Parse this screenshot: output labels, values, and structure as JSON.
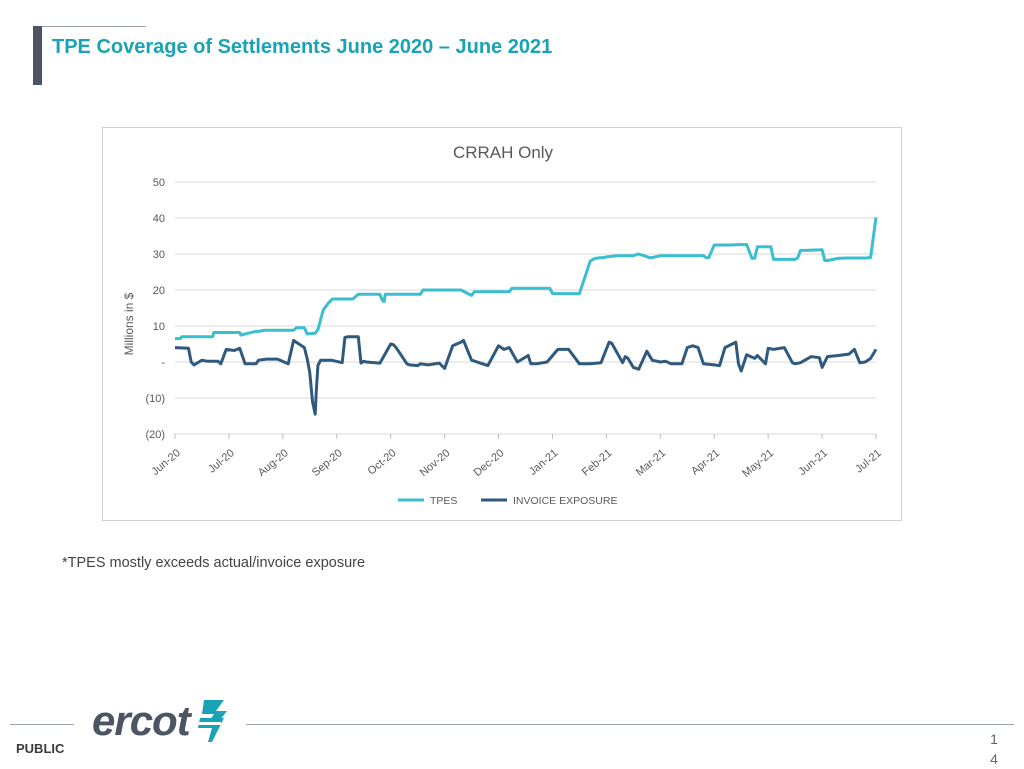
{
  "slide": {
    "title": "TPE Coverage of Settlements June 2020 – June 2021",
    "note": "*TPES mostly exceeds actual/invoice exposure",
    "footer_label": "PUBLIC",
    "page_number_line1": "1",
    "page_number_line2": "4",
    "logo_text": "ercot",
    "logo_mark": "ercot-bolt-icon"
  },
  "chart_data": {
    "type": "line",
    "title": "CRRAH Only",
    "xlabel": "",
    "ylabel": "Millions in $",
    "ylim": [
      -20,
      50
    ],
    "yticks": [
      50,
      40,
      30,
      20,
      10,
      0,
      -10,
      -20
    ],
    "ytick_labels": [
      "50",
      "40",
      "30",
      "20",
      "10",
      "-",
      "(10)",
      "(20)"
    ],
    "xtick_labels": [
      "Jun-20",
      "Jul-20",
      "Aug-20",
      "Sep-20",
      "Oct-20",
      "Nov-20",
      "Dec-20",
      "Jan-21",
      "Feb-21",
      "Mar-21",
      "Apr-21",
      "May-21",
      "Jun-21",
      "Jul-21"
    ],
    "grid": true,
    "legend_position": "bottom",
    "series": [
      {
        "name": "TPES",
        "color": "#3bbfcf",
        "x": [
          0,
          0.1,
          0.12,
          0.4,
          0.5,
          0.52,
          0.62,
          0.65,
          0.7,
          0.72,
          1.0,
          1.2,
          1.22,
          1.5,
          1.55,
          1.65,
          1.72,
          1.8,
          1.9,
          1.93,
          2.0,
          2.02,
          2.2,
          2.25,
          2.3,
          2.35,
          2.4,
          2.45,
          2.6,
          2.65,
          2.75,
          2.85,
          2.92,
          2.95,
          3.0,
          3.3,
          3.4,
          3.45,
          3.48,
          3.5,
          3.8,
          3.85,
          3.88,
          3.9,
          4.0,
          4.5,
          4.52,
          4.55,
          4.6,
          4.7,
          5.0,
          5.1,
          5.15,
          5.2,
          5.3,
          5.5,
          5.55,
          5.6,
          5.65,
          6.0,
          6.2,
          6.25,
          6.5,
          6.9,
          6.95,
          7.0,
          7.5,
          7.7,
          7.75,
          7.8,
          7.85,
          7.9,
          7.95,
          8.0,
          8.2,
          8.25,
          8.3,
          8.5,
          8.55,
          8.6,
          8.8,
          8.85,
          8.9,
          9.0,
          9.5,
          9.55,
          9.6,
          9.8,
          9.85,
          9.9,
          10.0,
          10.2,
          10.25,
          10.3,
          10.45,
          10.5,
          10.6,
          10.7,
          10.75,
          10.8,
          11.0,
          11.05,
          11.1,
          11.5,
          11.55,
          11.6,
          11.7,
          12.0,
          12.05,
          12.1,
          12.2,
          12.3,
          12.5,
          12.8,
          12.9,
          13.0
        ],
        "values": [
          6.5,
          6.5,
          7,
          7,
          7,
          7,
          7,
          7,
          7,
          8.2,
          8.2,
          8.2,
          7.5,
          8.5,
          8.5,
          8.8,
          8.8,
          8.8,
          8.8,
          8.8,
          8.8,
          8.8,
          8.8,
          9.5,
          9.5,
          9.5,
          9.5,
          7.8,
          8,
          9,
          14.5,
          16.5,
          17.5,
          17.5,
          17.5,
          17.5,
          18.8,
          18.8,
          18.8,
          18.8,
          18.8,
          17,
          16.8,
          18.8,
          18.8,
          18.8,
          18.8,
          18.8,
          20,
          20,
          20,
          20,
          20,
          20,
          20,
          18.5,
          19.5,
          19.5,
          19.5,
          19.5,
          19.5,
          20.5,
          20.5,
          20.5,
          20.5,
          19,
          19,
          28,
          28.5,
          28.8,
          28.9,
          29,
          29,
          29.2,
          29.5,
          29.5,
          29.5,
          29.5,
          29.8,
          30,
          29,
          29,
          29.2,
          29.5,
          29.5,
          29.5,
          29.5,
          29.5,
          29,
          29,
          32.5,
          32.5,
          32.5,
          32.5,
          32.6,
          32.6,
          32.6,
          28.8,
          28.8,
          32,
          32,
          32,
          28.5,
          28.5,
          29,
          31,
          31,
          31.2,
          28.2,
          28.2,
          28.5,
          28.8,
          28.9,
          28.9,
          29,
          40.2
        ]
      },
      {
        "name": "INVOICE EXPOSURE",
        "color": "#2f5a7e",
        "x": [
          0,
          0.25,
          0.3,
          0.35,
          0.5,
          0.6,
          0.8,
          0.85,
          0.95,
          1.1,
          1.2,
          1.3,
          1.35,
          1.5,
          1.55,
          1.7,
          1.9,
          2.1,
          2.2,
          2.25,
          2.4,
          2.45,
          2.5,
          2.55,
          2.6,
          2.62,
          2.65,
          2.7,
          2.75,
          2.9,
          3.1,
          3.15,
          3.2,
          3.4,
          3.45,
          3.5,
          3.55,
          3.8,
          4.0,
          4.05,
          4.1,
          4.3,
          4.35,
          4.5,
          4.55,
          4.7,
          4.9,
          5.0,
          5.15,
          5.3,
          5.35,
          5.5,
          5.8,
          6.0,
          6.1,
          6.2,
          6.35,
          6.55,
          6.6,
          6.7,
          6.9,
          7.1,
          7.3,
          7.5,
          7.7,
          7.9,
          8.05,
          8.1,
          8.3,
          8.35,
          8.4,
          8.5,
          8.6,
          8.75,
          8.85,
          9.0,
          9.1,
          9.2,
          9.4,
          9.5,
          9.6,
          9.7,
          9.8,
          10.0,
          10.1,
          10.2,
          10.4,
          10.45,
          10.5,
          10.6,
          10.75,
          10.8,
          10.95,
          11.0,
          11.1,
          11.3,
          11.45,
          11.5,
          11.6,
          11.8,
          11.95,
          12.0,
          12.1,
          12.3,
          12.5,
          12.6,
          12.7,
          12.8,
          12.9,
          13.0
        ],
        "values": [
          4,
          3.8,
          0,
          -0.8,
          0.5,
          0.2,
          0.2,
          -0.5,
          3.5,
          3.2,
          3.8,
          -0.5,
          -0.5,
          -0.5,
          0.5,
          0.8,
          0.8,
          -0.5,
          6,
          5.5,
          4,
          1,
          -3,
          -11,
          -14.5,
          -8,
          -1,
          0.5,
          0.5,
          0.5,
          -0.2,
          6.8,
          7,
          7,
          -0.3,
          0.2,
          0,
          -0.3,
          5,
          4.8,
          4,
          -0.5,
          -0.8,
          -1,
          -0.5,
          -0.8,
          -0.3,
          -1.8,
          4.5,
          5.5,
          6,
          0.5,
          -1,
          4.5,
          3.5,
          4,
          0,
          1.8,
          -0.5,
          -0.5,
          0,
          3.5,
          3.5,
          -0.5,
          -0.5,
          -0.2,
          5.5,
          5.2,
          -0.2,
          1.5,
          1,
          -1.5,
          -2,
          3,
          0.5,
          0,
          0.2,
          -0.5,
          -0.5,
          4,
          4.5,
          4,
          -0.5,
          -0.8,
          -1,
          4,
          5.5,
          -0.5,
          -2.5,
          2,
          1,
          1.8,
          -0.5,
          3.8,
          3.5,
          4,
          -0.2,
          -0.5,
          -0.2,
          1.5,
          1.2,
          -1.5,
          1.5,
          1.8,
          2.2,
          3.5,
          -0.2,
          0,
          1,
          3.5
        ]
      }
    ]
  }
}
